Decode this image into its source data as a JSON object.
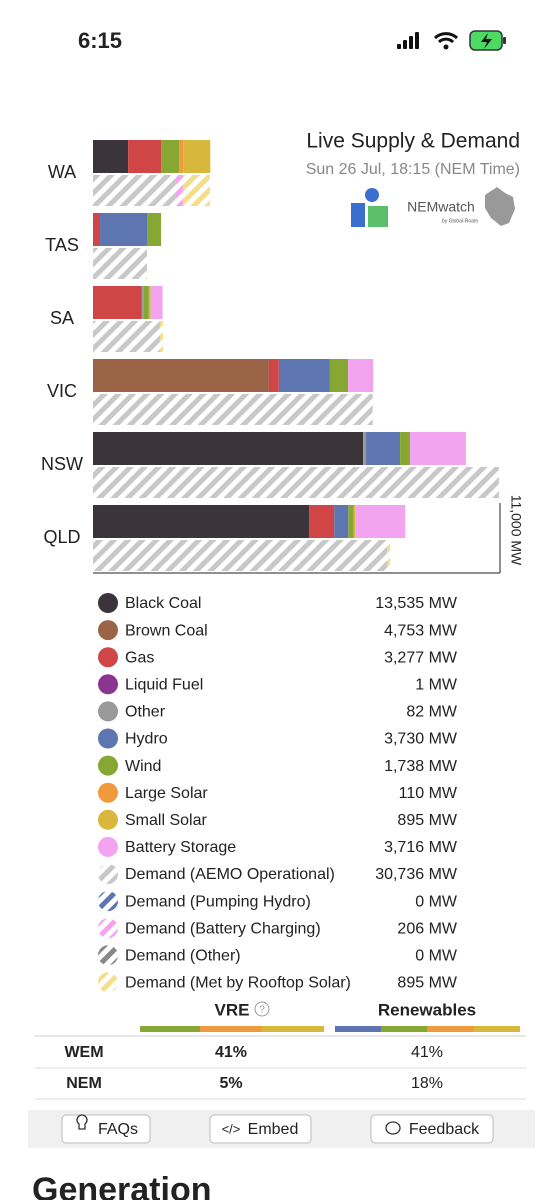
{
  "status_bar": {
    "time": "6:15"
  },
  "chart_data": {
    "type": "bar",
    "orientation": "horizontal",
    "stacked": true,
    "title": "Live Supply & Demand",
    "subtitle": "Sun 26 Jul, 18:15 (NEM Time)",
    "logo": {
      "name": "NEMwatch",
      "by": "by Global-Roam"
    },
    "categories": [
      "WA",
      "TAS",
      "SA",
      "VIC",
      "NSW",
      "QLD"
    ],
    "xlim": [
      0,
      11000
    ],
    "xticks": [
      {
        "value": 11000,
        "label": "11,000 MW"
      }
    ],
    "series": [
      {
        "name": "Black Coal",
        "group": "supply",
        "color": "#3b353b",
        "total": "13,535 MW",
        "values": [
          950,
          0,
          0,
          0,
          7300,
          5840
        ]
      },
      {
        "name": "Brown Coal",
        "group": "supply",
        "color": "#9b6446",
        "total": "4,753 MW",
        "values": [
          0,
          0,
          0,
          4753,
          0,
          0
        ]
      },
      {
        "name": "Gas",
        "group": "supply",
        "color": "#d04545",
        "total": "3,277 MW",
        "values": [
          890,
          190,
          1320,
          270,
          0,
          680
        ]
      },
      {
        "name": "Liquid Fuel",
        "group": "supply",
        "color": "#8a3590",
        "total": "1 MW",
        "values": [
          0,
          0,
          0,
          0,
          0,
          0
        ]
      },
      {
        "name": "Other",
        "group": "supply",
        "color": "#999999",
        "total": "82 MW",
        "values": [
          0,
          0,
          50,
          0,
          80,
          0
        ]
      },
      {
        "name": "Hydro",
        "group": "supply",
        "color": "#5d75b0",
        "total": "3,730 MW",
        "values": [
          0,
          1270,
          0,
          1380,
          920,
          380
        ]
      },
      {
        "name": "Wind",
        "group": "supply",
        "color": "#86a832",
        "total": "1,738 MW",
        "values": [
          490,
          380,
          140,
          490,
          270,
          140
        ]
      },
      {
        "name": "Large Solar",
        "group": "supply",
        "color": "#ef9a3c",
        "total": "110 MW",
        "values": [
          110,
          0,
          0,
          0,
          0,
          0
        ]
      },
      {
        "name": "Small Solar",
        "group": "supply",
        "color": "#d8b83c",
        "total": "895 MW",
        "values": [
          730,
          0,
          50,
          0,
          0,
          50
        ]
      },
      {
        "name": "Battery Storage",
        "group": "supply",
        "color": "#f3a4f0",
        "total": "3,716 MW",
        "values": [
          0,
          0,
          320,
          680,
          1510,
          1350
        ]
      },
      {
        "name": "Demand (AEMO Operational)",
        "group": "demand",
        "color": "#c8c8c8",
        "total": "30,736 MW",
        "values": [
          2240,
          1460,
          1810,
          7560,
          10970,
          7950
        ]
      },
      {
        "name": "Demand (Pumping Hydro)",
        "group": "demand",
        "color": "#5d75b0",
        "total": "0 MW",
        "values": [
          0,
          0,
          0,
          0,
          0,
          0
        ]
      },
      {
        "name": "Demand (Battery Charging)",
        "group": "demand",
        "color": "#f3a4f0",
        "total": "206 MW",
        "values": [
          190,
          0,
          0,
          0,
          0,
          0
        ]
      },
      {
        "name": "Demand (Other)",
        "group": "demand",
        "color": "#888888",
        "total": "0 MW",
        "values": [
          0,
          0,
          0,
          0,
          0,
          0
        ]
      },
      {
        "name": "Demand (Met by Rooftop Solar)",
        "group": "demand",
        "color": "#f5de8a",
        "total": "895 MW",
        "values": [
          730,
          0,
          80,
          0,
          0,
          80
        ]
      }
    ]
  },
  "table": {
    "headers": [
      "VRE",
      "Renewables"
    ],
    "rows": [
      [
        "WEM",
        "41%",
        "41%"
      ],
      [
        "NEM",
        "5%",
        "18%"
      ]
    ]
  },
  "buttons": [
    "FAQs",
    "Embed",
    "Feedback"
  ],
  "section_heading": "Generation"
}
